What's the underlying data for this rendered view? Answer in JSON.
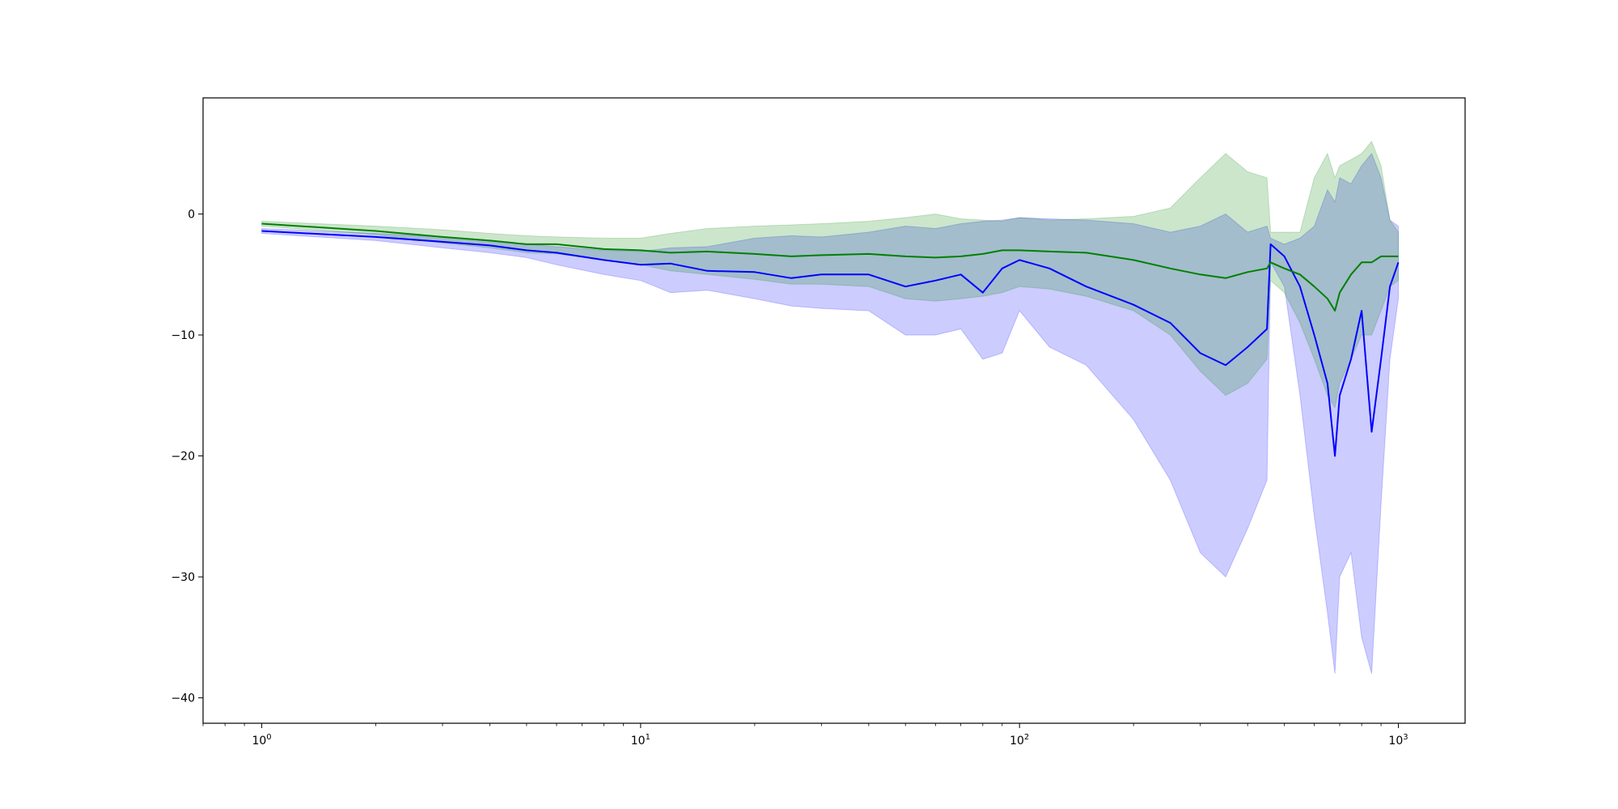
{
  "chart_data": {
    "type": "line",
    "title": "",
    "xlabel": "",
    "ylabel": "",
    "xscale": "log",
    "xlim": [
      0.7,
      1500
    ],
    "ylim": [
      -42.1,
      9.6
    ],
    "grid": false,
    "legend": "none",
    "x_tick_values": [
      1,
      10,
      100,
      1000
    ],
    "x_tick_labels": [
      {
        "base": "10",
        "exp": "0"
      },
      {
        "base": "10",
        "exp": "1"
      },
      {
        "base": "10",
        "exp": "2"
      },
      {
        "base": "10",
        "exp": "3"
      }
    ],
    "y_tick_values": [
      0,
      -10,
      -20,
      -30,
      -40
    ],
    "y_tick_labels": [
      "0",
      "−10",
      "−20",
      "−30",
      "−40"
    ],
    "series": [
      {
        "color": "#0000ff",
        "band_color": "#0000ff",
        "band_opacity": 0.2,
        "x": [
          1,
          2,
          3,
          4,
          5,
          6,
          8,
          10,
          12,
          15,
          20,
          25,
          30,
          40,
          50,
          60,
          70,
          80,
          90,
          100,
          120,
          150,
          200,
          250,
          300,
          350,
          400,
          450,
          460,
          500,
          550,
          600,
          650,
          680,
          700,
          750,
          800,
          850,
          900,
          950,
          1000
        ],
        "mean": [
          -1.4,
          -1.9,
          -2.3,
          -2.6,
          -3.0,
          -3.2,
          -3.8,
          -4.2,
          -4.1,
          -4.7,
          -4.8,
          -5.3,
          -5.0,
          -5.0,
          -6.0,
          -5.5,
          -5.0,
          -6.5,
          -4.5,
          -3.8,
          -4.5,
          -6.0,
          -7.5,
          -9.0,
          -11.5,
          -12.5,
          -11.0,
          -9.5,
          -2.5,
          -3.5,
          -6.0,
          -10.0,
          -14.0,
          -20.0,
          -15.0,
          -12.0,
          -8.0,
          -18.0,
          -12.0,
          -6.0,
          -4.0
        ],
        "upper": [
          -1.2,
          -1.6,
          -1.9,
          -2.2,
          -2.5,
          -2.7,
          -3.0,
          -3.1,
          -2.8,
          -2.7,
          -2.0,
          -1.8,
          -1.9,
          -1.5,
          -1.0,
          -1.2,
          -0.8,
          -0.6,
          -0.5,
          -0.3,
          -0.4,
          -0.5,
          -0.8,
          -1.5,
          -1.0,
          0.0,
          -1.5,
          -1.0,
          -2.0,
          -2.5,
          -2.0,
          -1.0,
          2.0,
          1.0,
          3.0,
          2.5,
          4.0,
          5.0,
          3.0,
          -0.5,
          -1.0
        ],
        "lower": [
          -1.6,
          -2.2,
          -2.8,
          -3.2,
          -3.6,
          -4.2,
          -5.0,
          -5.5,
          -6.5,
          -6.3,
          -7.0,
          -7.6,
          -7.8,
          -8.0,
          -10.0,
          -10.0,
          -9.5,
          -12.0,
          -11.5,
          -8.0,
          -11.0,
          -12.5,
          -17.0,
          -22.0,
          -28.0,
          -30.0,
          -26.0,
          -22.0,
          -4.0,
          -6.0,
          -15.0,
          -25.0,
          -33.0,
          -38.0,
          -30.0,
          -28.0,
          -35.0,
          -38.0,
          -24.0,
          -12.0,
          -7.0
        ]
      },
      {
        "color": "#008000",
        "band_color": "#008000",
        "band_opacity": 0.2,
        "x": [
          1,
          2,
          3,
          4,
          5,
          6,
          8,
          10,
          12,
          15,
          20,
          25,
          30,
          40,
          50,
          60,
          70,
          80,
          90,
          100,
          120,
          150,
          200,
          250,
          300,
          350,
          400,
          450,
          460,
          500,
          550,
          600,
          650,
          680,
          700,
          750,
          800,
          850,
          900,
          950,
          1000
        ],
        "mean": [
          -0.8,
          -1.4,
          -1.9,
          -2.2,
          -2.5,
          -2.5,
          -2.9,
          -3.0,
          -3.2,
          -3.1,
          -3.3,
          -3.5,
          -3.4,
          -3.3,
          -3.5,
          -3.6,
          -3.5,
          -3.3,
          -3.0,
          -3.0,
          -3.1,
          -3.2,
          -3.8,
          -4.5,
          -5.0,
          -5.3,
          -4.8,
          -4.5,
          -4.0,
          -4.5,
          -5.0,
          -6.0,
          -7.0,
          -8.0,
          -6.5,
          -5.0,
          -4.0,
          -4.0,
          -3.5,
          -3.5,
          -3.5
        ],
        "upper": [
          -0.6,
          -1.0,
          -1.3,
          -1.6,
          -1.8,
          -1.9,
          -2.0,
          -2.0,
          -1.6,
          -1.2,
          -1.0,
          -0.9,
          -0.8,
          -0.6,
          -0.3,
          0.0,
          -0.4,
          -0.5,
          -0.6,
          -0.3,
          -0.5,
          -0.4,
          -0.2,
          0.5,
          3.0,
          5.0,
          3.5,
          3.0,
          -1.5,
          -1.5,
          -1.5,
          3.0,
          5.0,
          3.0,
          4.0,
          4.5,
          5.0,
          6.0,
          4.0,
          -0.5,
          -1.5
        ],
        "lower": [
          -1.0,
          -1.7,
          -2.4,
          -2.8,
          -3.2,
          -3.3,
          -3.8,
          -4.2,
          -4.7,
          -5.0,
          -5.4,
          -5.8,
          -5.8,
          -6.0,
          -7.0,
          -7.2,
          -7.0,
          -6.8,
          -6.5,
          -6.0,
          -6.2,
          -6.8,
          -8.0,
          -10.0,
          -13.0,
          -15.0,
          -14.0,
          -12.0,
          -5.5,
          -6.5,
          -9.0,
          -12.0,
          -15.0,
          -16.0,
          -14.0,
          -12.0,
          -10.0,
          -10.0,
          -8.0,
          -6.0,
          -5.5
        ]
      }
    ]
  }
}
